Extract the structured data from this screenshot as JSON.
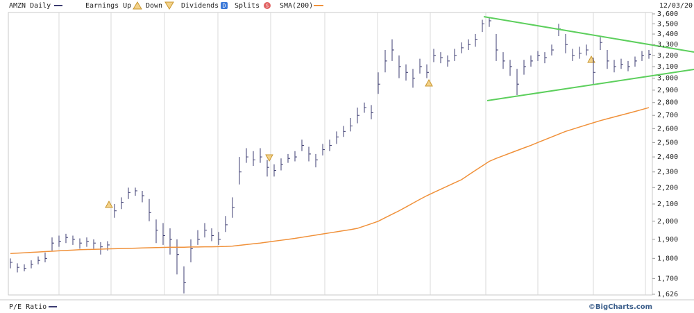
{
  "chart_data": {
    "type": "ohlc",
    "title": "AMZN Daily",
    "date": "12/03/20",
    "legend_items": [
      "Earnings Up",
      "Down",
      "Dividends",
      "Splits"
    ],
    "footer_left": "P/E Ratio",
    "footer_right": "©BigCharts.com",
    "log_scale": true,
    "ylim": [
      1626,
      3600
    ],
    "yticks": [
      {
        "value": 3600,
        "label": "3,600"
      },
      {
        "value": 3500,
        "label": "3,500"
      },
      {
        "value": 3400,
        "label": "3,400"
      },
      {
        "value": 3300,
        "label": "3,300"
      },
      {
        "value": 3200,
        "label": "3,200"
      },
      {
        "value": 3100,
        "label": "3,100"
      },
      {
        "value": 3000,
        "label": "3,000"
      },
      {
        "value": 2900,
        "label": "2,900"
      },
      {
        "value": 2800,
        "label": "2,800"
      },
      {
        "value": 2700,
        "label": "2,700"
      },
      {
        "value": 2600,
        "label": "2,600"
      },
      {
        "value": 2500,
        "label": "2,500"
      },
      {
        "value": 2400,
        "label": "2,400"
      },
      {
        "value": 2300,
        "label": "2,300"
      },
      {
        "value": 2200,
        "label": "2,200"
      },
      {
        "value": 2100,
        "label": "2,100"
      },
      {
        "value": 2000,
        "label": "2,000"
      },
      {
        "value": 1900,
        "label": "1,900"
      },
      {
        "value": 1800,
        "label": "1,800"
      },
      {
        "value": 1700,
        "label": "1,700"
      },
      {
        "value": 1626,
        "label": "1,626"
      }
    ],
    "series": [
      {
        "name": "AMZN Daily",
        "color": "#3b3b70",
        "high": [
          1800,
          1775,
          1770,
          1790,
          1810,
          1830,
          1910,
          1920,
          1930,
          1920,
          1905,
          1910,
          1900,
          1885,
          1890,
          2100,
          2140,
          2200,
          2200,
          2180,
          2130,
          2010,
          1990,
          1960,
          1900,
          1760,
          1900,
          1950,
          1990,
          1960,
          1940,
          2030,
          2140,
          2400,
          2460,
          2440,
          2460,
          2380,
          2350,
          2390,
          2420,
          2440,
          2520,
          2470,
          2420,
          2490,
          2520,
          2580,
          2620,
          2680,
          2760,
          2800,
          2780,
          3050,
          3250,
          3350,
          3200,
          3120,
          3080,
          3170,
          3120,
          3260,
          3230,
          3200,
          3260,
          3320,
          3350,
          3400,
          3540,
          3560,
          3400,
          3230,
          3160,
          3080,
          3160,
          3200,
          3240,
          3230,
          3300,
          3500,
          3400,
          3260,
          3280,
          3300,
          3180,
          3370,
          3250,
          3160,
          3170,
          3150,
          3190,
          3240,
          3250
        ],
        "low": [
          1750,
          1730,
          1735,
          1750,
          1770,
          1780,
          1840,
          1860,
          1880,
          1870,
          1850,
          1860,
          1850,
          1820,
          1840,
          2020,
          2070,
          2130,
          2150,
          2110,
          2000,
          1880,
          1870,
          1820,
          1720,
          1630,
          1780,
          1870,
          1910,
          1890,
          1870,
          1940,
          2020,
          2220,
          2360,
          2340,
          2360,
          2270,
          2270,
          2310,
          2360,
          2370,
          2440,
          2370,
          2330,
          2410,
          2440,
          2490,
          2540,
          2580,
          2640,
          2720,
          2670,
          2870,
          3050,
          3150,
          3000,
          2980,
          2920,
          3040,
          3000,
          3140,
          3130,
          3100,
          3150,
          3220,
          3250,
          3280,
          3420,
          3470,
          3150,
          3080,
          3020,
          2860,
          3030,
          3100,
          3150,
          3130,
          3200,
          3380,
          3220,
          3150,
          3170,
          3200,
          2950,
          3250,
          3080,
          3050,
          3080,
          3060,
          3100,
          3150,
          3170
        ],
        "close": [
          1780,
          1755,
          1750,
          1770,
          1790,
          1800,
          1880,
          1890,
          1910,
          1900,
          1880,
          1890,
          1880,
          1860,
          1870,
          2060,
          2110,
          2170,
          2180,
          2150,
          2050,
          1950,
          1920,
          1900,
          1820,
          1680,
          1850,
          1900,
          1950,
          1920,
          1900,
          1980,
          2080,
          2300,
          2400,
          2380,
          2400,
          2330,
          2310,
          2350,
          2390,
          2400,
          2480,
          2420,
          2380,
          2450,
          2480,
          2540,
          2580,
          2620,
          2700,
          2760,
          2720,
          2950,
          3150,
          3250,
          3100,
          3050,
          3000,
          3100,
          3050,
          3200,
          3180,
          3150,
          3200,
          3270,
          3300,
          3350,
          3500,
          3530,
          3250,
          3150,
          3100,
          2950,
          3100,
          3150,
          3200,
          3180,
          3250,
          3450,
          3300,
          3200,
          3220,
          3250,
          3050,
          3320,
          3150,
          3100,
          3120,
          3100,
          3150,
          3200,
          3210
        ]
      }
    ],
    "sma": {
      "name": "SMA(200)",
      "color": "#f0913a",
      "values": [
        1825,
        1827,
        1829,
        1831,
        1833,
        1835,
        1837,
        1839,
        1841,
        1843,
        1845,
        1846,
        1847,
        1848,
        1849,
        1850,
        1851,
        1852,
        1853,
        1854,
        1855,
        1856,
        1857,
        1858,
        1858,
        1858,
        1859,
        1859,
        1860,
        1860,
        1861,
        1862,
        1864,
        1868,
        1872,
        1876,
        1880,
        1885,
        1890,
        1895,
        1900,
        1905,
        1911,
        1917,
        1923,
        1929,
        1935,
        1941,
        1947,
        1953,
        1960,
        1973,
        1986,
        2000,
        2020,
        2040,
        2060,
        2082,
        2105,
        2128,
        2150,
        2170,
        2190,
        2210,
        2230,
        2250,
        2280,
        2310,
        2340,
        2370,
        2390,
        2408,
        2426,
        2444,
        2462,
        2480,
        2500,
        2520,
        2540,
        2560,
        2580,
        2596,
        2612,
        2628,
        2644,
        2660,
        2674,
        2688,
        2702,
        2716,
        2730,
        2745,
        2760
      ]
    }
  }
}
